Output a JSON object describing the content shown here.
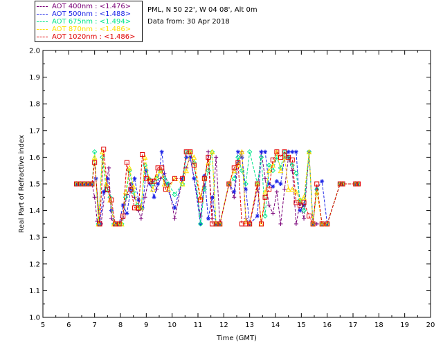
{
  "header": {
    "location": "PML, N 50 22', W 04 08', Alt 0m",
    "date_line": "Data from: 30 Apr 2018"
  },
  "legend": [
    {
      "label": "AOT  400nm : <1.476>",
      "color": "#7a0078"
    },
    {
      "label": "AOT  500nm : <1.488>",
      "color": "#1a22e6"
    },
    {
      "label": "AOT  675nm : <1.494>",
      "color": "#00e68a"
    },
    {
      "label": "AOT  870nm : <1.486>",
      "color": "#ffe000"
    },
    {
      "label": "AOT 1020nm : <1.486>",
      "color": "#e00000"
    }
  ],
  "chart_data": {
    "type": "scatter",
    "title": "",
    "xlabel": "Time (GMT)",
    "ylabel": "Real Part of Refractive index",
    "xlim": [
      5,
      20
    ],
    "ylim": [
      1.0,
      2.0
    ],
    "xticks": [
      "5",
      "6",
      "7",
      "8",
      "9",
      "10",
      "11",
      "12",
      "13",
      "14",
      "15",
      "16",
      "17",
      "18",
      "19",
      "20"
    ],
    "yticks": [
      "1.0",
      "1.1",
      "1.2",
      "1.3",
      "1.4",
      "1.5",
      "1.6",
      "1.7",
      "1.8",
      "1.9",
      "2.0"
    ],
    "series": [
      {
        "name": "AOT  400nm",
        "color": "#7a0078",
        "marker": "plus",
        "x": [
          6.3,
          6.45,
          6.6,
          6.75,
          6.9,
          7.0,
          7.1,
          7.25,
          7.4,
          7.55,
          7.65,
          7.8,
          7.95,
          8.1,
          8.25,
          8.4,
          8.55,
          8.7,
          8.8,
          8.95,
          9.1,
          9.25,
          9.4,
          9.55,
          9.7,
          9.85,
          10.1,
          10.4,
          10.55,
          10.7,
          10.85,
          11.1,
          11.25,
          11.4,
          11.55,
          11.7,
          11.85,
          12.2,
          12.4,
          12.55,
          12.7,
          12.85,
          13.0,
          13.3,
          13.45,
          13.6,
          13.75,
          13.9,
          14.05,
          14.2,
          14.35,
          14.5,
          14.65,
          14.8,
          14.95,
          15.1,
          15.3,
          15.45,
          15.6,
          15.8,
          16.0,
          16.5,
          16.6,
          17.1,
          17.2
        ],
        "y": [
          1.5,
          1.5,
          1.5,
          1.5,
          1.5,
          1.45,
          1.36,
          1.35,
          1.47,
          1.56,
          1.37,
          1.35,
          1.35,
          1.37,
          1.46,
          1.5,
          1.45,
          1.4,
          1.37,
          1.45,
          1.52,
          1.51,
          1.48,
          1.52,
          1.54,
          1.5,
          1.37,
          1.52,
          1.56,
          1.6,
          1.52,
          1.38,
          1.49,
          1.62,
          1.37,
          1.6,
          1.35,
          1.5,
          1.45,
          1.58,
          1.62,
          1.37,
          1.35,
          1.48,
          1.62,
          1.52,
          1.42,
          1.39,
          1.47,
          1.35,
          1.48,
          1.6,
          1.55,
          1.35,
          1.43,
          1.37,
          1.62,
          1.35,
          1.35,
          1.35,
          1.35,
          1.5,
          1.5,
          1.5,
          1.5
        ]
      },
      {
        "name": "AOT  500nm",
        "color": "#1a22e6",
        "marker": "asterisk",
        "x": [
          6.3,
          6.45,
          6.6,
          6.75,
          6.9,
          7.05,
          7.2,
          7.35,
          7.5,
          7.65,
          7.8,
          7.95,
          8.1,
          8.25,
          8.4,
          8.55,
          8.7,
          8.85,
          9.0,
          9.15,
          9.3,
          9.45,
          9.6,
          9.75,
          10.1,
          10.4,
          10.55,
          10.7,
          10.85,
          11.1,
          11.25,
          11.4,
          11.55,
          11.7,
          11.85,
          12.2,
          12.4,
          12.55,
          12.7,
          12.85,
          13.0,
          13.3,
          13.45,
          13.6,
          13.75,
          13.9,
          14.05,
          14.2,
          14.35,
          14.5,
          14.65,
          14.8,
          14.95,
          15.1,
          15.3,
          15.45,
          15.6,
          15.8,
          16.0,
          16.5,
          16.6,
          17.1,
          17.2
        ],
        "y": [
          1.5,
          1.5,
          1.5,
          1.5,
          1.5,
          1.52,
          1.35,
          1.47,
          1.52,
          1.4,
          1.35,
          1.35,
          1.42,
          1.39,
          1.48,
          1.52,
          1.44,
          1.41,
          1.55,
          1.5,
          1.45,
          1.5,
          1.62,
          1.5,
          1.41,
          1.52,
          1.6,
          1.6,
          1.52,
          1.35,
          1.53,
          1.37,
          1.45,
          1.35,
          1.35,
          1.5,
          1.47,
          1.62,
          1.6,
          1.48,
          1.35,
          1.38,
          1.62,
          1.62,
          1.5,
          1.49,
          1.51,
          1.5,
          1.6,
          1.62,
          1.62,
          1.62,
          1.4,
          1.42,
          1.62,
          1.35,
          1.48,
          1.51,
          1.35,
          1.5,
          1.5,
          1.5,
          1.5
        ]
      },
      {
        "name": "AOT  675nm",
        "color": "#00e68a",
        "marker": "diamond",
        "x": [
          6.3,
          6.45,
          6.6,
          6.75,
          6.9,
          7.0,
          7.15,
          7.3,
          7.45,
          7.6,
          7.75,
          7.9,
          8.05,
          8.2,
          8.35,
          8.5,
          8.65,
          8.8,
          8.95,
          9.1,
          9.25,
          9.4,
          9.55,
          9.7,
          9.85,
          10.1,
          10.4,
          10.55,
          10.7,
          10.85,
          11.1,
          11.25,
          11.4,
          11.55,
          11.7,
          11.85,
          12.2,
          12.4,
          12.55,
          12.7,
          12.85,
          13.0,
          13.3,
          13.45,
          13.6,
          13.75,
          13.9,
          14.05,
          14.2,
          14.35,
          14.5,
          14.65,
          14.8,
          14.95,
          15.1,
          15.3,
          15.45,
          15.6,
          15.8,
          16.0,
          16.5,
          16.6,
          17.1,
          17.2
        ],
        "y": [
          1.5,
          1.5,
          1.5,
          1.5,
          1.5,
          1.62,
          1.35,
          1.6,
          1.48,
          1.45,
          1.35,
          1.35,
          1.35,
          1.45,
          1.55,
          1.47,
          1.42,
          1.41,
          1.57,
          1.52,
          1.5,
          1.52,
          1.55,
          1.52,
          1.5,
          1.46,
          1.5,
          1.62,
          1.62,
          1.58,
          1.35,
          1.48,
          1.55,
          1.62,
          1.35,
          1.35,
          1.5,
          1.52,
          1.6,
          1.55,
          1.5,
          1.62,
          1.5,
          1.6,
          1.38,
          1.57,
          1.55,
          1.6,
          1.56,
          1.62,
          1.6,
          1.57,
          1.54,
          1.44,
          1.4,
          1.62,
          1.35,
          1.48,
          1.35,
          1.35,
          1.5,
          1.5,
          1.5,
          1.5
        ]
      },
      {
        "name": "AOT  870nm",
        "color": "#ffe000",
        "marker": "triangle",
        "x": [
          6.3,
          6.45,
          6.6,
          6.75,
          6.9,
          7.0,
          7.15,
          7.3,
          7.45,
          7.6,
          7.75,
          7.9,
          8.05,
          8.2,
          8.35,
          8.5,
          8.65,
          8.8,
          8.95,
          9.1,
          9.25,
          9.4,
          9.55,
          9.7,
          9.85,
          10.1,
          10.4,
          10.55,
          10.7,
          10.85,
          11.1,
          11.25,
          11.4,
          11.55,
          11.7,
          11.85,
          12.2,
          12.4,
          12.55,
          12.7,
          12.85,
          13.0,
          13.3,
          13.45,
          13.6,
          13.75,
          13.9,
          14.05,
          14.2,
          14.35,
          14.5,
          14.65,
          14.8,
          14.95,
          15.1,
          15.3,
          15.45,
          15.6,
          15.8,
          16.0,
          16.5,
          16.6,
          17.1,
          17.2
        ],
        "y": [
          1.5,
          1.5,
          1.5,
          1.5,
          1.5,
          1.6,
          1.35,
          1.62,
          1.5,
          1.44,
          1.35,
          1.35,
          1.35,
          1.47,
          1.56,
          1.49,
          1.41,
          1.41,
          1.6,
          1.52,
          1.48,
          1.53,
          1.55,
          1.5,
          1.48,
          1.52,
          1.5,
          1.55,
          1.62,
          1.6,
          1.45,
          1.52,
          1.58,
          1.62,
          1.35,
          1.35,
          1.5,
          1.55,
          1.57,
          1.62,
          1.36,
          1.35,
          1.5,
          1.35,
          1.47,
          1.55,
          1.57,
          1.62,
          1.55,
          1.6,
          1.48,
          1.48,
          1.47,
          1.44,
          1.45,
          1.62,
          1.35,
          1.47,
          1.35,
          1.35,
          1.5,
          1.5,
          1.5,
          1.5
        ]
      },
      {
        "name": "AOT 1020nm",
        "color": "#e00000",
        "marker": "square",
        "x": [
          6.3,
          6.45,
          6.6,
          6.75,
          6.9,
          7.0,
          7.2,
          7.35,
          7.5,
          7.65,
          7.8,
          7.95,
          8.1,
          8.25,
          8.4,
          8.55,
          8.7,
          8.85,
          9.0,
          9.15,
          9.3,
          9.45,
          9.6,
          9.75,
          10.1,
          10.4,
          10.55,
          10.7,
          10.85,
          11.1,
          11.25,
          11.4,
          11.55,
          11.7,
          11.85,
          12.2,
          12.4,
          12.55,
          12.7,
          12.85,
          13.0,
          13.3,
          13.45,
          13.6,
          13.75,
          13.9,
          14.05,
          14.2,
          14.35,
          14.5,
          14.65,
          14.8,
          14.95,
          15.1,
          15.3,
          15.45,
          15.6,
          15.8,
          16.0,
          16.5,
          16.6,
          17.1,
          17.2
        ],
        "y": [
          1.5,
          1.5,
          1.5,
          1.5,
          1.5,
          1.58,
          1.35,
          1.63,
          1.48,
          1.44,
          1.35,
          1.35,
          1.38,
          1.58,
          1.48,
          1.41,
          1.41,
          1.61,
          1.52,
          1.51,
          1.51,
          1.56,
          1.56,
          1.48,
          1.52,
          1.52,
          1.62,
          1.62,
          1.57,
          1.44,
          1.52,
          1.6,
          1.35,
          1.35,
          1.35,
          1.5,
          1.56,
          1.58,
          1.35,
          1.35,
          1.35,
          1.5,
          1.35,
          1.45,
          1.48,
          1.59,
          1.62,
          1.6,
          1.62,
          1.6,
          1.59,
          1.43,
          1.42,
          1.43,
          1.38,
          1.35,
          1.5,
          1.35,
          1.35,
          1.5,
          1.5,
          1.5,
          1.5
        ]
      }
    ]
  }
}
